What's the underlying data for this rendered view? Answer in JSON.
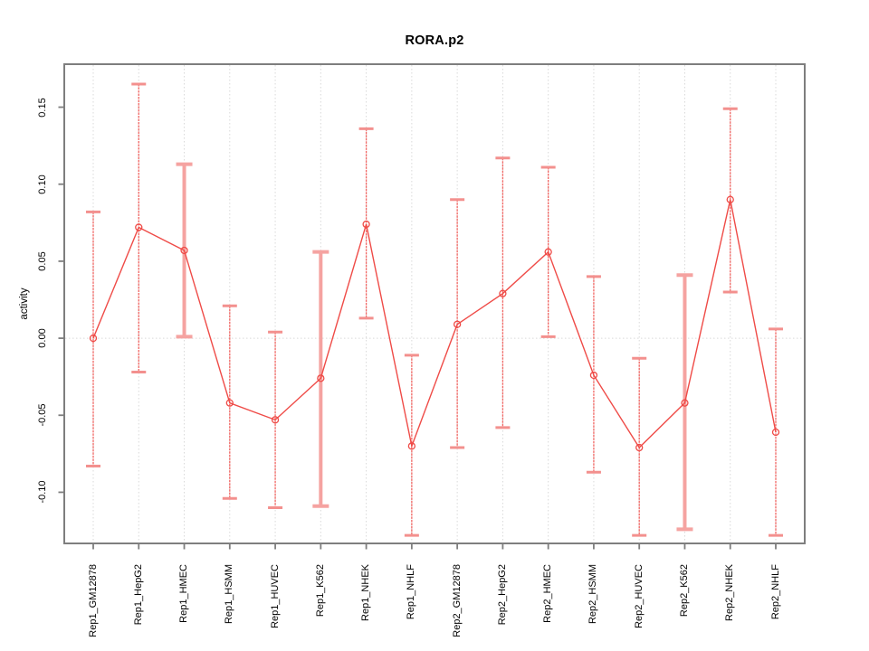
{
  "title": "RORA.p2",
  "chart_data": {
    "type": "line",
    "title": "RORA.p2",
    "xlabel": "",
    "ylabel": "activity",
    "categories": [
      "Rep1_GM12878",
      "Rep1_HepG2",
      "Rep1_HMEC",
      "Rep1_HSMM",
      "Rep1_HUVEC",
      "Rep1_K562",
      "Rep1_NHEK",
      "Rep1_NHLF",
      "Rep2_GM12878",
      "Rep2_HepG2",
      "Rep2_HMEC",
      "Rep2_HSMM",
      "Rep2_HUVEC",
      "Rep2_K562",
      "Rep2_NHEK",
      "Rep2_NHLF"
    ],
    "series": [
      {
        "name": "activity",
        "values": [
          0.0,
          0.072,
          0.057,
          -0.042,
          -0.053,
          -0.026,
          0.074,
          -0.07,
          0.009,
          0.029,
          0.056,
          -0.024,
          -0.071,
          -0.042,
          0.09,
          -0.061
        ],
        "error_high": [
          0.082,
          0.165,
          0.113,
          0.021,
          0.004,
          0.056,
          0.136,
          -0.011,
          0.09,
          0.117,
          0.111,
          0.04,
          -0.013,
          0.041,
          0.149,
          0.006
        ],
        "error_low": [
          -0.083,
          -0.022,
          0.001,
          -0.104,
          -0.11,
          -0.109,
          0.013,
          -0.128,
          -0.071,
          -0.058,
          0.001,
          -0.087,
          -0.128,
          -0.124,
          0.03,
          -0.128
        ],
        "wide_error_bar": [
          false,
          false,
          true,
          false,
          false,
          true,
          false,
          false,
          false,
          false,
          false,
          false,
          false,
          true,
          false,
          false
        ]
      }
    ],
    "y_ticks": [
      -0.1,
      -0.05,
      0.0,
      0.05,
      0.1,
      0.15
    ],
    "y_tick_labels": [
      "-0.10",
      "-0.05",
      "0.00",
      "0.05",
      "0.10",
      "0.15"
    ],
    "ylim": [
      -0.1332,
      0.1779
    ],
    "grid": {
      "vertical_gridlines": "dotted",
      "zero_line": "dotted",
      "horizontal_gridlines": "none"
    },
    "legend_position": "none",
    "marker": "open-circle",
    "colors": {
      "series": "#ef4b47",
      "error_bar": "#f16663",
      "error_bar_cap": "#f3908e",
      "error_bar_wide": "#f5a3a1",
      "gridline": "#d9d9d9",
      "zero_line": "#d9d9d9",
      "frame": "#7e7e7e",
      "text": "#000000",
      "background": "#ffffff"
    }
  }
}
